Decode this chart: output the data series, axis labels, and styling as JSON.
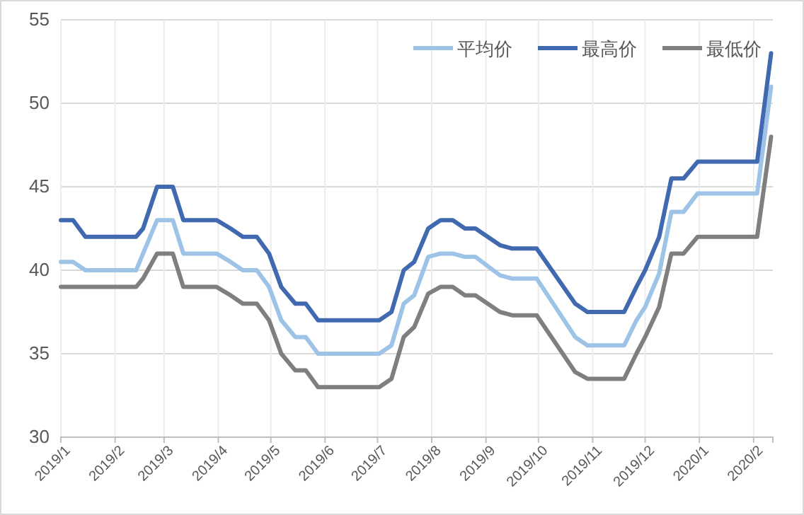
{
  "chart_data": {
    "type": "line",
    "x": [
      "2019-01-01",
      "2019-01-08",
      "2019-01-15",
      "2019-02-13",
      "2019-02-17",
      "2019-02-25",
      "2019-03-06",
      "2019-03-12",
      "2019-03-31",
      "2019-04-08",
      "2019-04-15",
      "2019-04-23",
      "2019-04-30",
      "2019-05-07",
      "2019-05-15",
      "2019-05-21",
      "2019-05-28",
      "2019-07-02",
      "2019-07-09",
      "2019-07-16",
      "2019-07-22",
      "2019-07-30",
      "2019-08-06",
      "2019-08-13",
      "2019-08-20",
      "2019-08-26",
      "2019-09-09",
      "2019-09-16",
      "2019-09-30",
      "2019-10-22",
      "2019-10-29",
      "2019-11-19",
      "2019-11-26",
      "2019-12-01",
      "2019-12-09",
      "2019-12-16",
      "2019-12-23",
      "2019-12-31",
      "2020-02-03",
      "2020-02-11"
    ],
    "series": [
      {
        "name": "平均价",
        "color": "#9dc3e6",
        "values": [
          40.5,
          40.5,
          40,
          40,
          41,
          43,
          43,
          41,
          41,
          40.5,
          40,
          40,
          39,
          37,
          36,
          36,
          35,
          35,
          35.5,
          38,
          38.5,
          40.8,
          41,
          41,
          40.8,
          40.8,
          39.7,
          39.5,
          39.5,
          36,
          35.5,
          35.5,
          37,
          37.8,
          39.8,
          43.5,
          43.5,
          44.6,
          44.6,
          51
        ]
      },
      {
        "name": "最高价",
        "color": "#4069b0",
        "values": [
          43,
          43,
          42,
          42,
          42.5,
          45,
          45,
          43,
          43,
          42.5,
          42,
          42,
          41,
          39,
          38,
          38,
          37,
          37,
          37.5,
          40,
          40.5,
          42.5,
          43,
          43,
          42.5,
          42.5,
          41.5,
          41.3,
          41.3,
          38,
          37.5,
          37.5,
          39,
          40,
          42,
          45.5,
          45.5,
          46.5,
          46.5,
          53
        ]
      },
      {
        "name": "最低价",
        "color": "#7f7f7f",
        "values": [
          39,
          39,
          39,
          39,
          39.5,
          41,
          41,
          39,
          39,
          38.5,
          38,
          38,
          37,
          35,
          34,
          34,
          33,
          33,
          33.5,
          36,
          36.6,
          38.6,
          39,
          39,
          38.5,
          38.5,
          37.5,
          37.3,
          37.3,
          33.9,
          33.5,
          33.5,
          35,
          36,
          37.8,
          41,
          41,
          42,
          42,
          48
        ]
      }
    ],
    "xlim": [
      "2019-01-01",
      "2020-02-12"
    ],
    "xticks": [
      {
        "value": "2019-01-01",
        "label": "2019/1"
      },
      {
        "value": "2019-02-01",
        "label": "2019/2"
      },
      {
        "value": "2019-03-01",
        "label": "2019/3"
      },
      {
        "value": "2019-04-01",
        "label": "2019/4"
      },
      {
        "value": "2019-05-01",
        "label": "2019/5"
      },
      {
        "value": "2019-06-01",
        "label": "2019/6"
      },
      {
        "value": "2019-07-01",
        "label": "2019/7"
      },
      {
        "value": "2019-08-01",
        "label": "2019/8"
      },
      {
        "value": "2019-09-01",
        "label": "2019/9"
      },
      {
        "value": "2019-10-01",
        "label": "2019/10"
      },
      {
        "value": "2019-11-01",
        "label": "2019/11"
      },
      {
        "value": "2019-12-01",
        "label": "2019/12"
      },
      {
        "value": "2020-01-01",
        "label": "2020/1"
      },
      {
        "value": "2020-02-01",
        "label": "2020/2"
      }
    ],
    "ylim": [
      30,
      55
    ],
    "yticks": [
      30,
      35,
      40,
      45,
      50,
      55
    ],
    "grid": true,
    "legend": "top right",
    "marker": "none",
    "line_style": "solid"
  }
}
